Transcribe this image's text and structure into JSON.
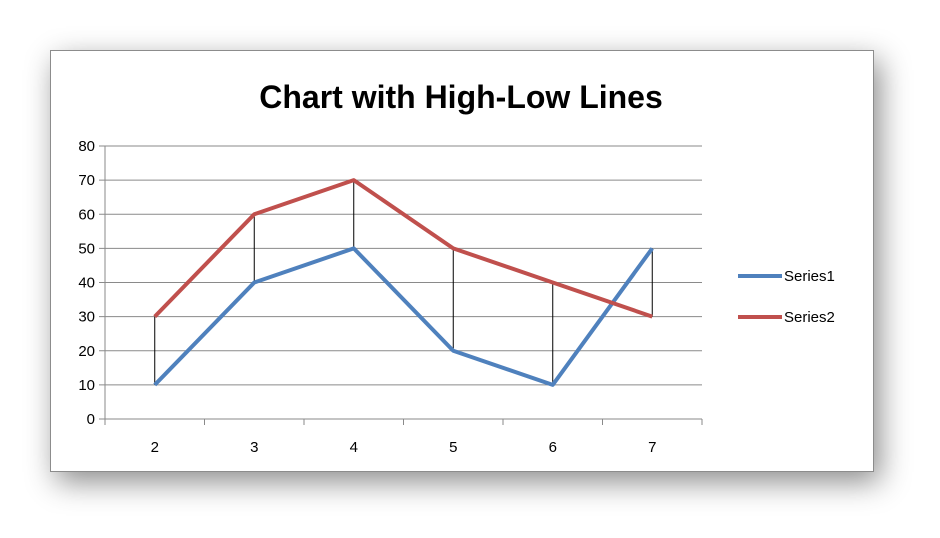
{
  "chart_data": {
    "type": "line",
    "title": "Chart with High-Low Lines",
    "xlabel": "",
    "ylabel": "",
    "categories": [
      "2",
      "3",
      "4",
      "5",
      "6",
      "7"
    ],
    "ylim": [
      0,
      80
    ],
    "yticks": [
      0,
      10,
      20,
      30,
      40,
      50,
      60,
      70,
      80
    ],
    "grid": true,
    "high_low_lines": true,
    "legend_position": "right",
    "series": [
      {
        "name": "Series1",
        "values": [
          10,
          40,
          50,
          20,
          10,
          50
        ],
        "color": "#4F81BD"
      },
      {
        "name": "Series2",
        "values": [
          30,
          60,
          70,
          50,
          40,
          30
        ],
        "color": "#C0504D"
      }
    ]
  }
}
